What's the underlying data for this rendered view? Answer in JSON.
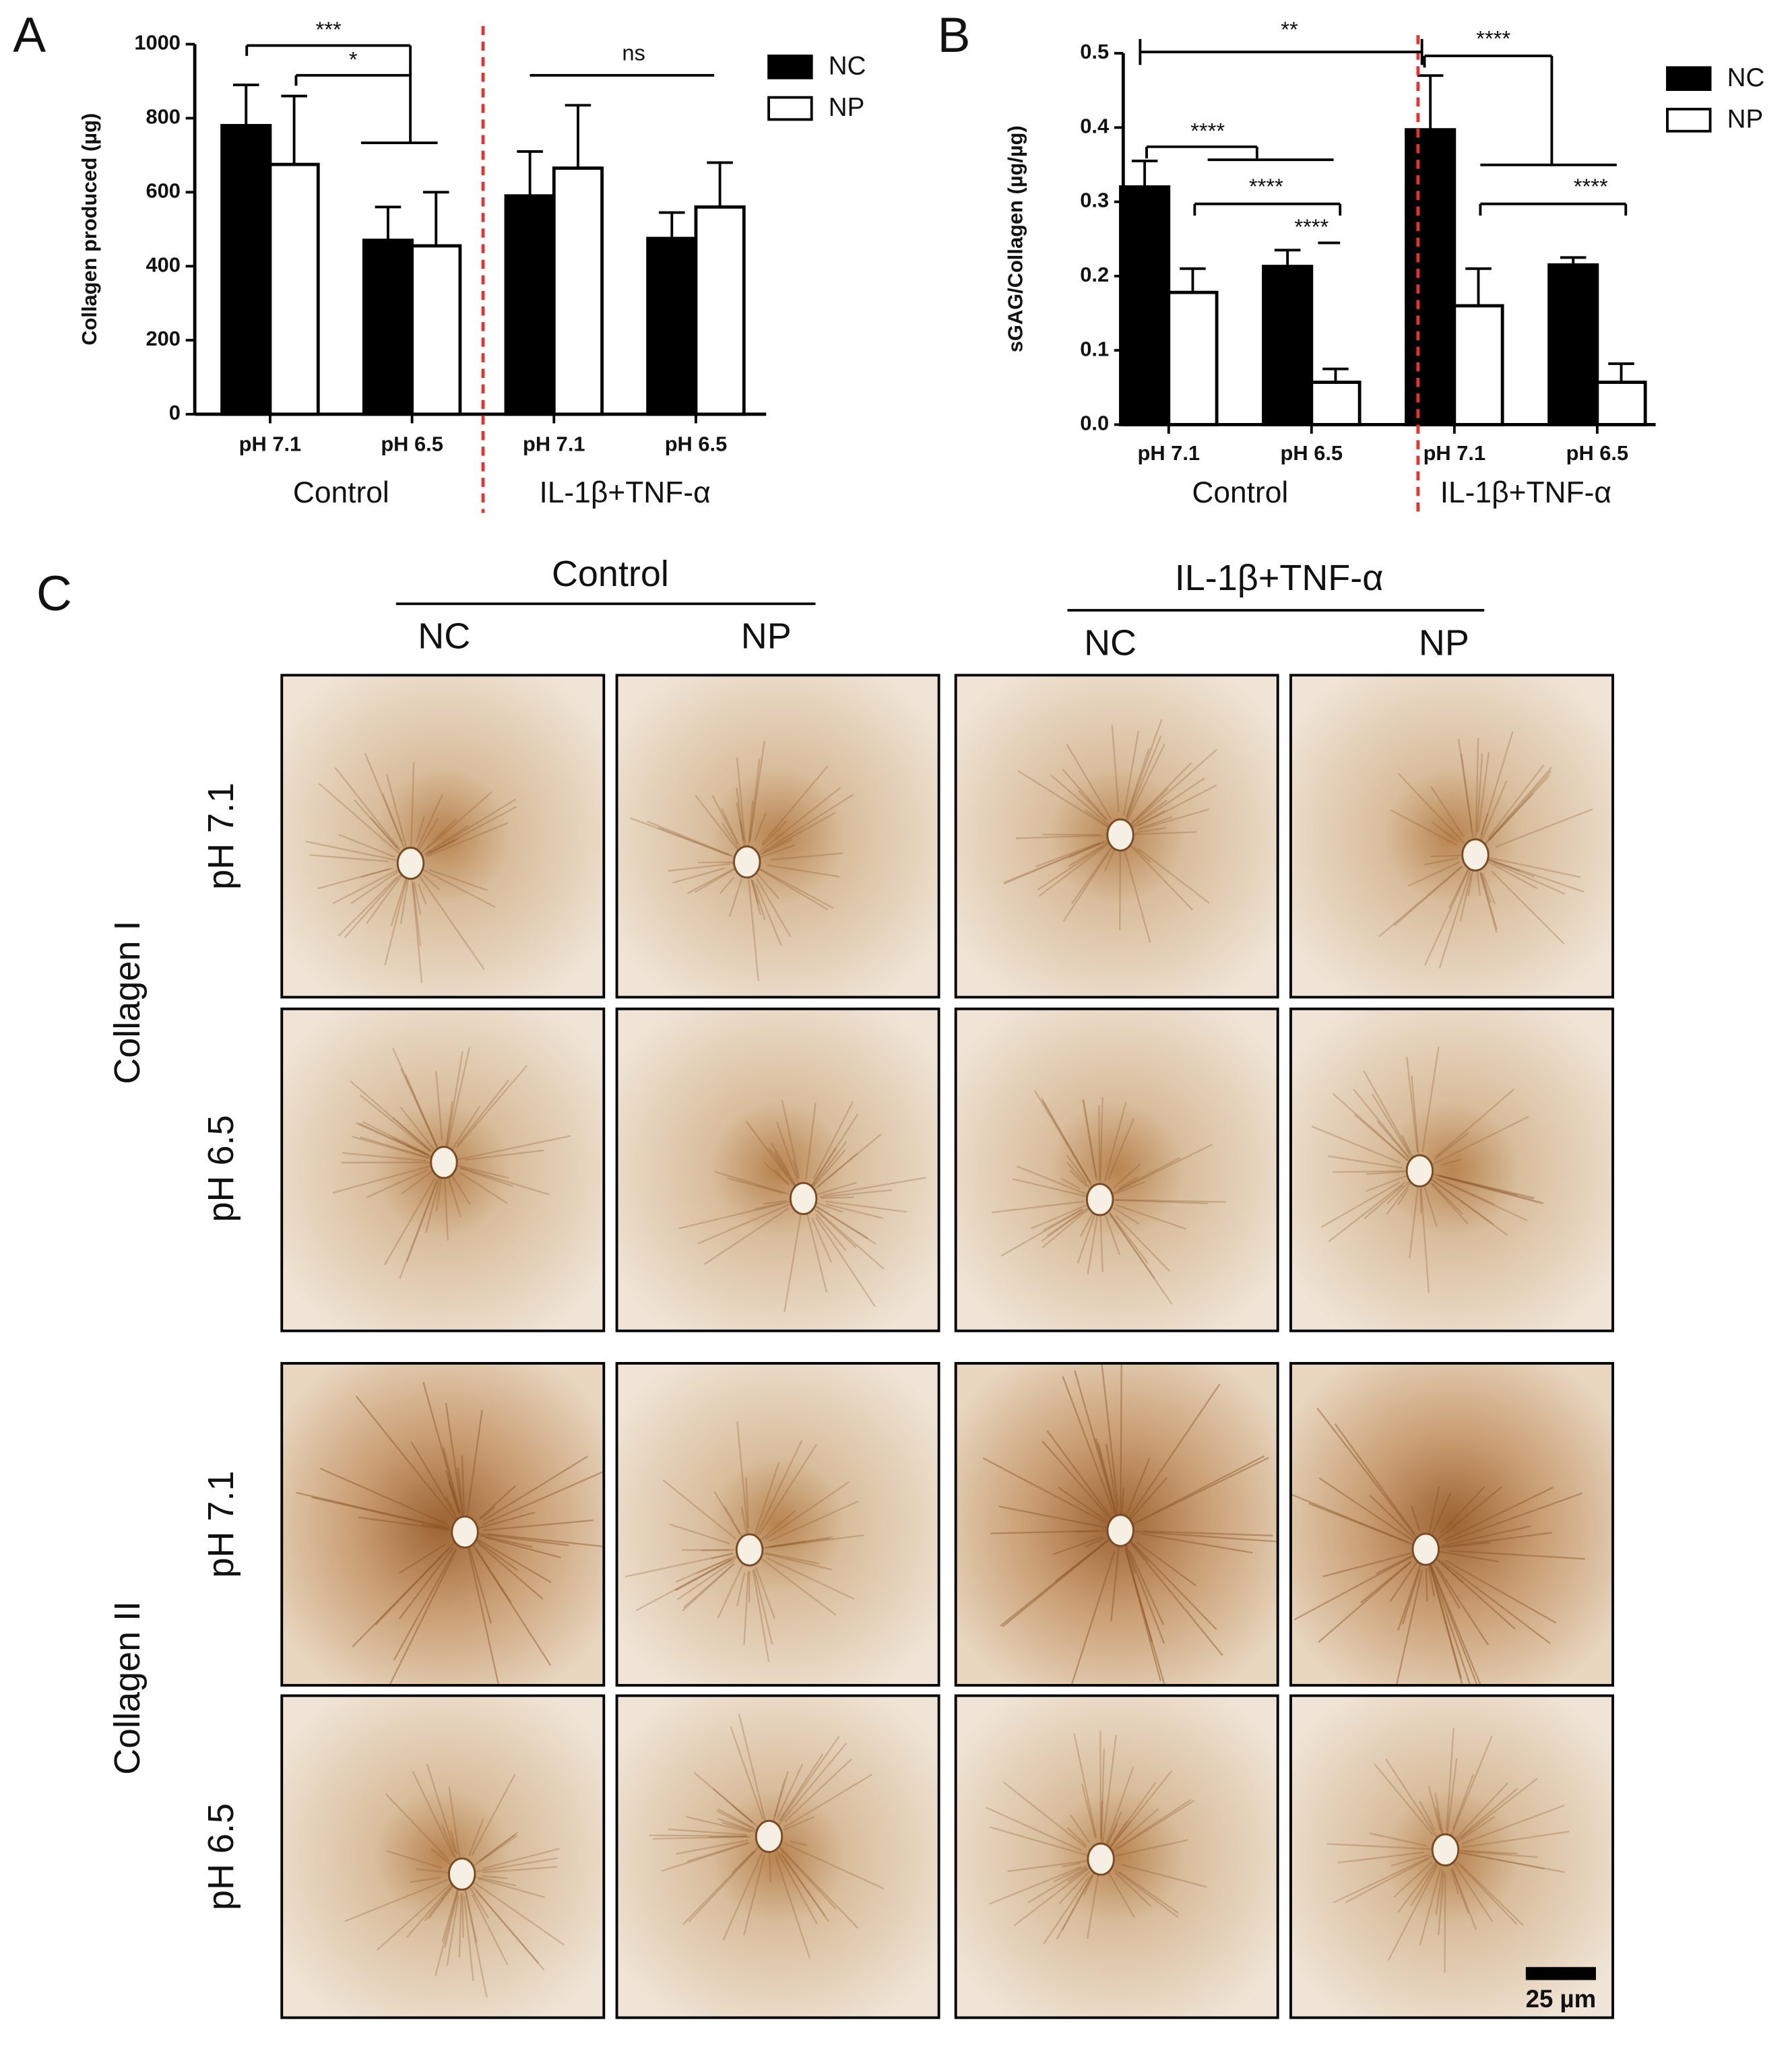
{
  "chart_data": [
    {
      "type": "bar",
      "panel": "A",
      "y_label": "Collagen produced (µg)",
      "categories": [
        "pH 7.1",
        "pH 6.5",
        "pH 7.1",
        "pH 6.5"
      ],
      "groups": [
        "Control",
        "IL-1β+TNF-α"
      ],
      "series": [
        {
          "name": "NC",
          "color": "#000000",
          "values": [
            780,
            470,
            590,
            475
          ],
          "errors": [
            110,
            90,
            120,
            70
          ]
        },
        {
          "name": "NP",
          "color": "#ffffff",
          "values": [
            675,
            455,
            665,
            560
          ],
          "errors": [
            185,
            145,
            170,
            120
          ]
        }
      ],
      "ylim": [
        0,
        1000
      ],
      "yticks": [
        0,
        200,
        400,
        600,
        800,
        1000
      ],
      "annotations": [
        "***",
        "*",
        "ns"
      ],
      "legend": "upper right"
    },
    {
      "type": "bar",
      "panel": "B",
      "y_label": "sGAG/Collagen (µg/µg)",
      "categories": [
        "pH 7.1",
        "pH 6.5",
        "pH 7.1",
        "pH 6.5"
      ],
      "groups": [
        "Control",
        "IL-1β+TNF-α"
      ],
      "series": [
        {
          "name": "NC",
          "color": "#000000",
          "values": [
            0.32,
            0.213,
            0.397,
            0.215
          ],
          "errors": [
            0.035,
            0.022,
            0.073,
            0.01
          ]
        },
        {
          "name": "NP",
          "color": "#ffffff",
          "values": [
            0.178,
            0.057,
            0.16,
            0.057
          ],
          "errors": [
            0.032,
            0.018,
            0.05,
            0.025
          ]
        }
      ],
      "ylim": [
        0,
        0.5
      ],
      "yticks": [
        {
          "value": 0,
          "label": "0.0"
        },
        0.1,
        0.2,
        0.3,
        0.4,
        0.5
      ],
      "annotations": [
        "**",
        "****",
        "****",
        "****",
        "****",
        "****"
      ],
      "legend": "upper right"
    }
  ],
  "panel_c": {
    "label": "C",
    "column_groups": [
      "Control",
      "IL-1β+TNF-α"
    ],
    "columns": [
      "NC",
      "NP",
      "NC",
      "NP"
    ],
    "row_groups": [
      "Collagen I",
      "Collagen II"
    ],
    "rows": [
      "pH 7.1",
      "pH 6.5",
      "pH 7.1",
      "pH 6.5"
    ],
    "scale_bar": "25 µm"
  }
}
